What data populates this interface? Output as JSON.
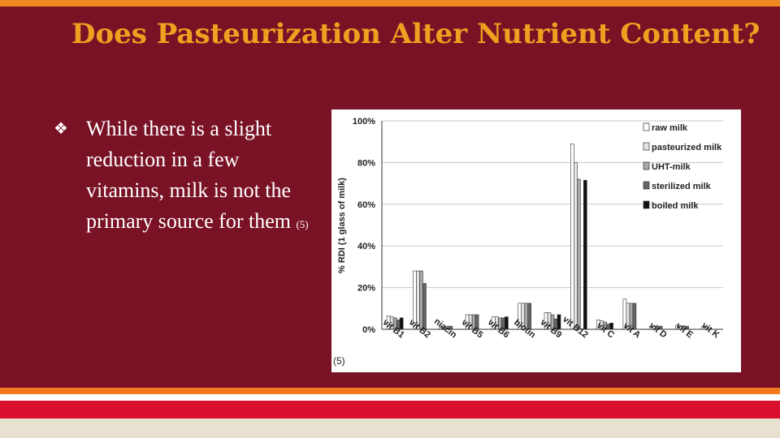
{
  "slide": {
    "title": "Does Pasteurization Alter Nutrient Content?",
    "bullet_symbol": "❖",
    "bullet_text": "While there is a slight reduction in a few vitamins, milk is not the primary source for them",
    "bullet_ref": "(5)",
    "chart_source": "(5)"
  },
  "chart_data": {
    "type": "bar",
    "ylabel": "% RDI (1 glass of milk)",
    "ylim": [
      0,
      100
    ],
    "yticks": [
      "0%",
      "20%",
      "40%",
      "60%",
      "80%",
      "100%"
    ],
    "grid": true,
    "legend_position": "top-right",
    "categories": [
      "vit B1",
      "vit B2",
      "niacin",
      "vit B5",
      "vit B6",
      "biotin",
      "vit B9",
      "vit B12",
      "vit C",
      "vit A",
      "vit D",
      "vit E",
      "vit K"
    ],
    "series": [
      {
        "name": "raw milk",
        "color": "#ffffff",
        "values": [
          6.5,
          28,
          1.5,
          7,
          6,
          12.5,
          8,
          89,
          4.5,
          14.5,
          1.5,
          2,
          1.5
        ]
      },
      {
        "name": "pasteurized milk",
        "color": "#e4e4e4",
        "values": [
          6,
          28,
          1,
          7,
          6,
          12.5,
          8,
          80,
          4,
          12.5,
          1.5,
          1.5,
          1
        ]
      },
      {
        "name": "UHT-milk",
        "color": "#a8a8a8",
        "values": [
          5.5,
          28,
          1.5,
          7,
          5.5,
          12.5,
          7,
          72,
          3.5,
          12.5,
          1.5,
          1.5,
          0
        ]
      },
      {
        "name": "sterilized milk",
        "color": "#666666",
        "values": [
          4.5,
          22,
          1.5,
          7,
          5.5,
          12.5,
          5,
          0,
          2.5,
          12.5,
          1.5,
          1.5,
          0
        ]
      },
      {
        "name": "boiled milk",
        "color": "#111111",
        "values": [
          5.5,
          0,
          0,
          0,
          6,
          0,
          7,
          71.5,
          3,
          0,
          0,
          0,
          0
        ]
      }
    ]
  }
}
